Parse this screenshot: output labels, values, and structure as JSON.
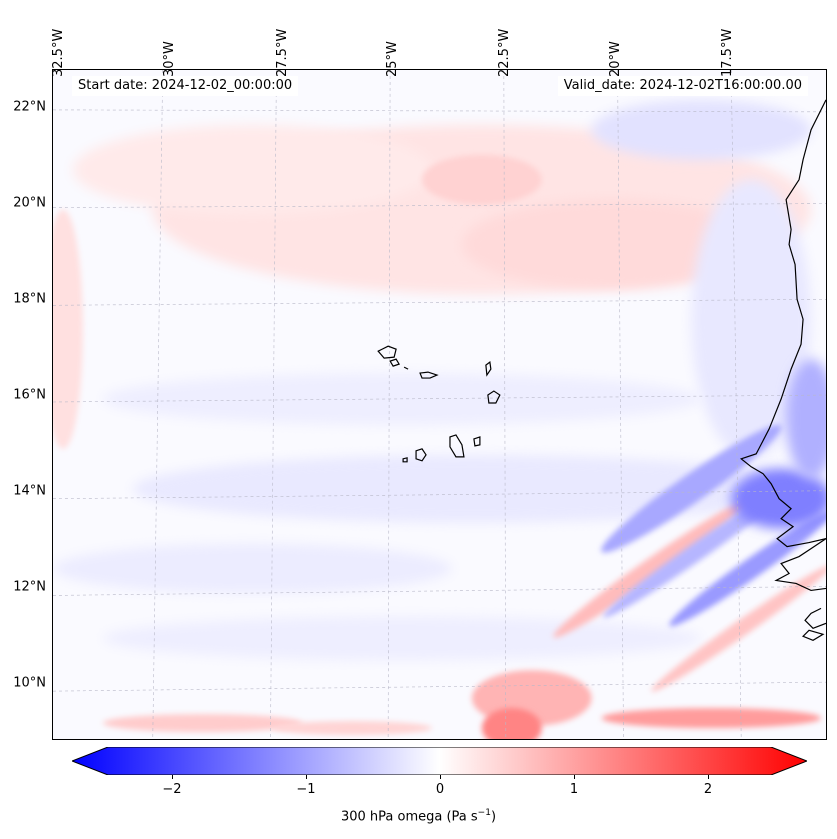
{
  "map": {
    "lon_labels": [
      "32.5°W",
      "30°W",
      "27.5°W",
      "25°W",
      "22.5°W",
      "20°W",
      "17.5°W"
    ],
    "lat_labels": [
      "22°N",
      "20°N",
      "18°N",
      "16°N",
      "14°N",
      "12°N",
      "10°N"
    ],
    "start_date": "Start date: 2024-12-02_00:00:00",
    "valid_date": "Valid_date: 2024-12-02T16:00:00.00",
    "field": "300 hPa omega",
    "colormap": "bwr",
    "coastline_color": "#000000"
  },
  "colorbar": {
    "ticks": [
      "−2",
      "−1",
      "0",
      "1",
      "2"
    ],
    "tick_values": [
      -2,
      -1,
      0,
      1,
      2
    ],
    "range": [
      -2.6,
      2.6
    ],
    "label_main": "300 hPa omega (Pa s",
    "label_sup": "−1",
    "label_end": ")",
    "min_color": "#0000ff",
    "mid_color": "#ffffff",
    "max_color": "#ff0000"
  }
}
